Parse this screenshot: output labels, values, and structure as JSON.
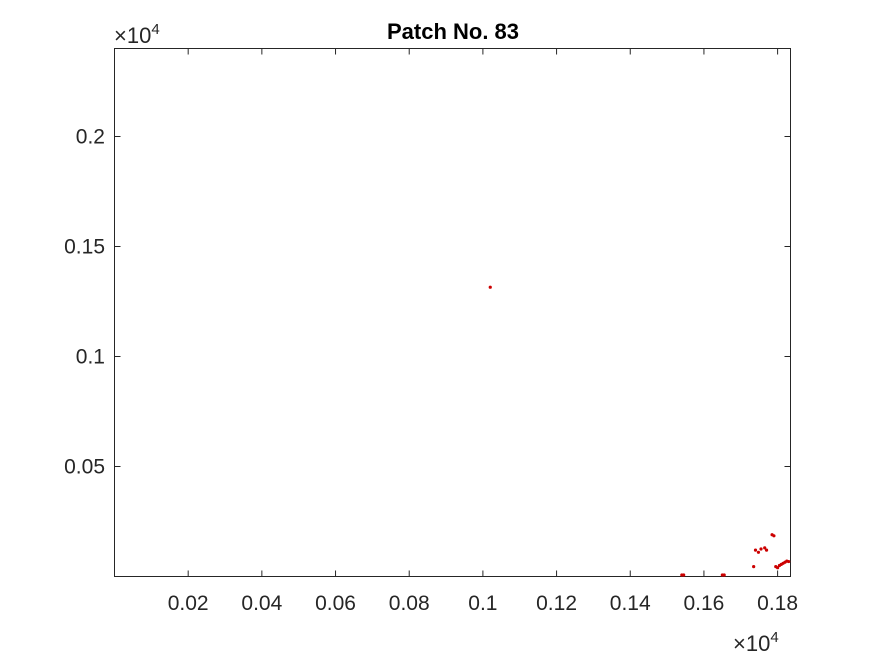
{
  "chart_data": {
    "type": "scatter",
    "title": "Patch No. 83",
    "xlabel": "",
    "ylabel": "",
    "x_exponent_label": "×10",
    "x_exponent_power": "4",
    "y_exponent_label": "×10",
    "y_exponent_power": "4",
    "xlim": [
      0.0,
      0.1835
    ],
    "ylim": [
      0.0,
      0.24
    ],
    "x_ticks": [
      0.02,
      0.04,
      0.06,
      0.08,
      0.1,
      0.12,
      0.14,
      0.16,
      0.18
    ],
    "x_tick_labels": [
      "0.02",
      "0.04",
      "0.06",
      "0.08",
      "0.1",
      "0.12",
      "0.14",
      "0.16",
      "0.18"
    ],
    "y_ticks": [
      0.05,
      0.1,
      0.15,
      0.2
    ],
    "y_tick_labels": [
      "0.05",
      "0.1",
      "0.15",
      "0.2"
    ],
    "grid": false,
    "legend": "none",
    "marker_color": "#cc0000",
    "series": [
      {
        "values": [
          [
            0.102,
            0.1315
          ],
          [
            0.154,
            0.0003
          ],
          [
            0.1545,
            0.0002
          ],
          [
            0.165,
            0.0003
          ],
          [
            0.1655,
            0.0002
          ],
          [
            0.1735,
            0.0045
          ],
          [
            0.174,
            0.012
          ],
          [
            0.1748,
            0.011
          ],
          [
            0.1755,
            0.0125
          ],
          [
            0.1765,
            0.013
          ],
          [
            0.177,
            0.012
          ],
          [
            0.1785,
            0.019
          ],
          [
            0.179,
            0.0185
          ],
          [
            0.1795,
            0.0045
          ],
          [
            0.18,
            0.004
          ],
          [
            0.1805,
            0.005
          ],
          [
            0.181,
            0.0055
          ],
          [
            0.1815,
            0.006
          ],
          [
            0.182,
            0.0065
          ],
          [
            0.1825,
            0.007
          ],
          [
            0.183,
            0.0068
          ]
        ]
      }
    ]
  }
}
